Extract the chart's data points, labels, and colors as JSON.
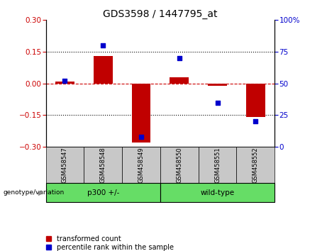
{
  "title": "GDS3598 / 1447795_at",
  "categories": [
    "GSM458547",
    "GSM458548",
    "GSM458549",
    "GSM458550",
    "GSM458551",
    "GSM458552"
  ],
  "bar_values": [
    0.01,
    0.13,
    -0.28,
    0.03,
    -0.01,
    -0.16
  ],
  "dot_values": [
    52,
    80,
    8,
    70,
    35,
    20
  ],
  "bar_color": "#c00000",
  "dot_color": "#0000cc",
  "ylim_left": [
    -0.3,
    0.3
  ],
  "ylim_right": [
    0,
    100
  ],
  "yticks_left": [
    -0.3,
    -0.15,
    0,
    0.15,
    0.3
  ],
  "yticks_right": [
    0,
    25,
    50,
    75,
    100
  ],
  "hline_y": 0.0,
  "dotted_lines": [
    -0.15,
    0.15
  ],
  "group_label": "genotype/variation",
  "legend_bar": "transformed count",
  "legend_dot": "percentile rank within the sample",
  "bar_width": 0.5,
  "tick_label_color_left": "#cc0000",
  "tick_label_color_right": "#0000cc",
  "xlabel_bg_color": "#c8c8c8",
  "group_bg_color": "#66dd66",
  "plot_bg_color": "#ffffff",
  "title_fontsize": 10,
  "axis_fontsize": 7.5,
  "legend_fontsize": 7,
  "group_ranges": [
    [
      -0.5,
      2.5,
      "p300 +/-"
    ],
    [
      2.5,
      5.5,
      "wild-type"
    ]
  ]
}
